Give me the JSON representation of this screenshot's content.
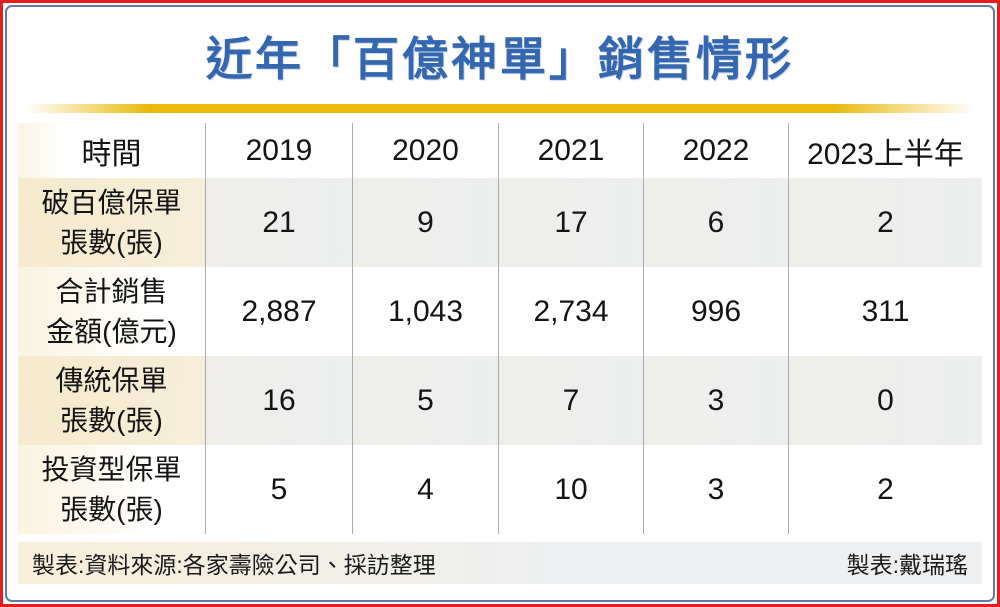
{
  "frame": {
    "outer_border_color": "#E51E1E",
    "inner_border_color": "#5F7DA8",
    "gold_bar_color": "#E9BA0C",
    "title_color": "#3567B1"
  },
  "title": "近年「百億神單」銷售情形",
  "table": {
    "columns": [
      "時間",
      "2019",
      "2020",
      "2021",
      "2022",
      "2023上半年"
    ],
    "rows": [
      {
        "label_line1": "破百億保單",
        "label_line2": "張數(張)",
        "values": [
          "21",
          "9",
          "17",
          "6",
          "2"
        ]
      },
      {
        "label_line1": "合計銷售",
        "label_line2": "金額(億元)",
        "values": [
          "2,887",
          "1,043",
          "2,734",
          "996",
          "311"
        ]
      },
      {
        "label_line1": "傳統保單",
        "label_line2": "張數(張)",
        "values": [
          "16",
          "5",
          "7",
          "3",
          "0"
        ]
      },
      {
        "label_line1": "投資型保單",
        "label_line2": "張數(張)",
        "values": [
          "5",
          "4",
          "10",
          "3",
          "2"
        ]
      }
    ]
  },
  "footer": {
    "left": "製表:資料來源:各家壽險公司、採訪整理",
    "right": "製表:戴瑞瑤"
  },
  "chart_data": {
    "type": "table",
    "title": "近年「百億神單」銷售情形",
    "categories": [
      "2019",
      "2020",
      "2021",
      "2022",
      "2023上半年"
    ],
    "row_header_label": "時間",
    "series": [
      {
        "name": "破百億保單張數(張)",
        "values": [
          21,
          9,
          17,
          6,
          2
        ]
      },
      {
        "name": "合計銷售金額(億元)",
        "values": [
          2887,
          1043,
          2734,
          996,
          311
        ]
      },
      {
        "name": "傳統保單張數(張)",
        "values": [
          16,
          5,
          7,
          3,
          0
        ]
      },
      {
        "name": "投資型保單張數(張)",
        "values": [
          5,
          4,
          10,
          3,
          2
        ]
      }
    ],
    "source_note": "製表:資料來源:各家壽險公司、採訪整理",
    "credit": "製表:戴瑞瑤"
  }
}
